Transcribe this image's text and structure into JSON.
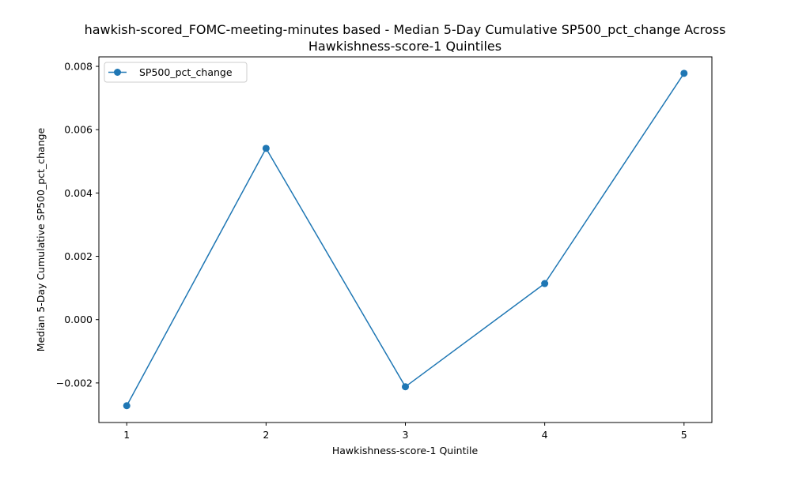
{
  "chart_data": {
    "type": "line",
    "title_lines": [
      "hawkish-scored_FOMC-meeting-minutes based - Median 5-Day Cumulative SP500_pct_change Across",
      "Hawkishness-score-1 Quintiles"
    ],
    "xlabel": "Hawkishness-score-1 Quintile",
    "ylabel": "Median 5-Day Cumulative SP500_pct_change",
    "x": [
      1,
      2,
      3,
      4,
      5
    ],
    "series": [
      {
        "name": "SP500_pct_change",
        "values": [
          -0.00272,
          0.00541,
          -0.00212,
          0.00114,
          0.00778
        ],
        "color": "#1f77b4",
        "marker": "circle"
      }
    ],
    "x_ticks": [
      1,
      2,
      3,
      4,
      5
    ],
    "x_tick_labels": [
      "1",
      "2",
      "3",
      "4",
      "5"
    ],
    "y_ticks": [
      -0.002,
      0.0,
      0.002,
      0.004,
      0.006,
      0.008
    ],
    "y_tick_labels": [
      "−0.002",
      "0.000",
      "0.002",
      "0.004",
      "0.006",
      "0.008"
    ],
    "xlim": [
      0.8,
      5.2
    ],
    "ylim": [
      -0.00325,
      0.0083
    ],
    "grid": false,
    "legend_position": "upper-left"
  }
}
